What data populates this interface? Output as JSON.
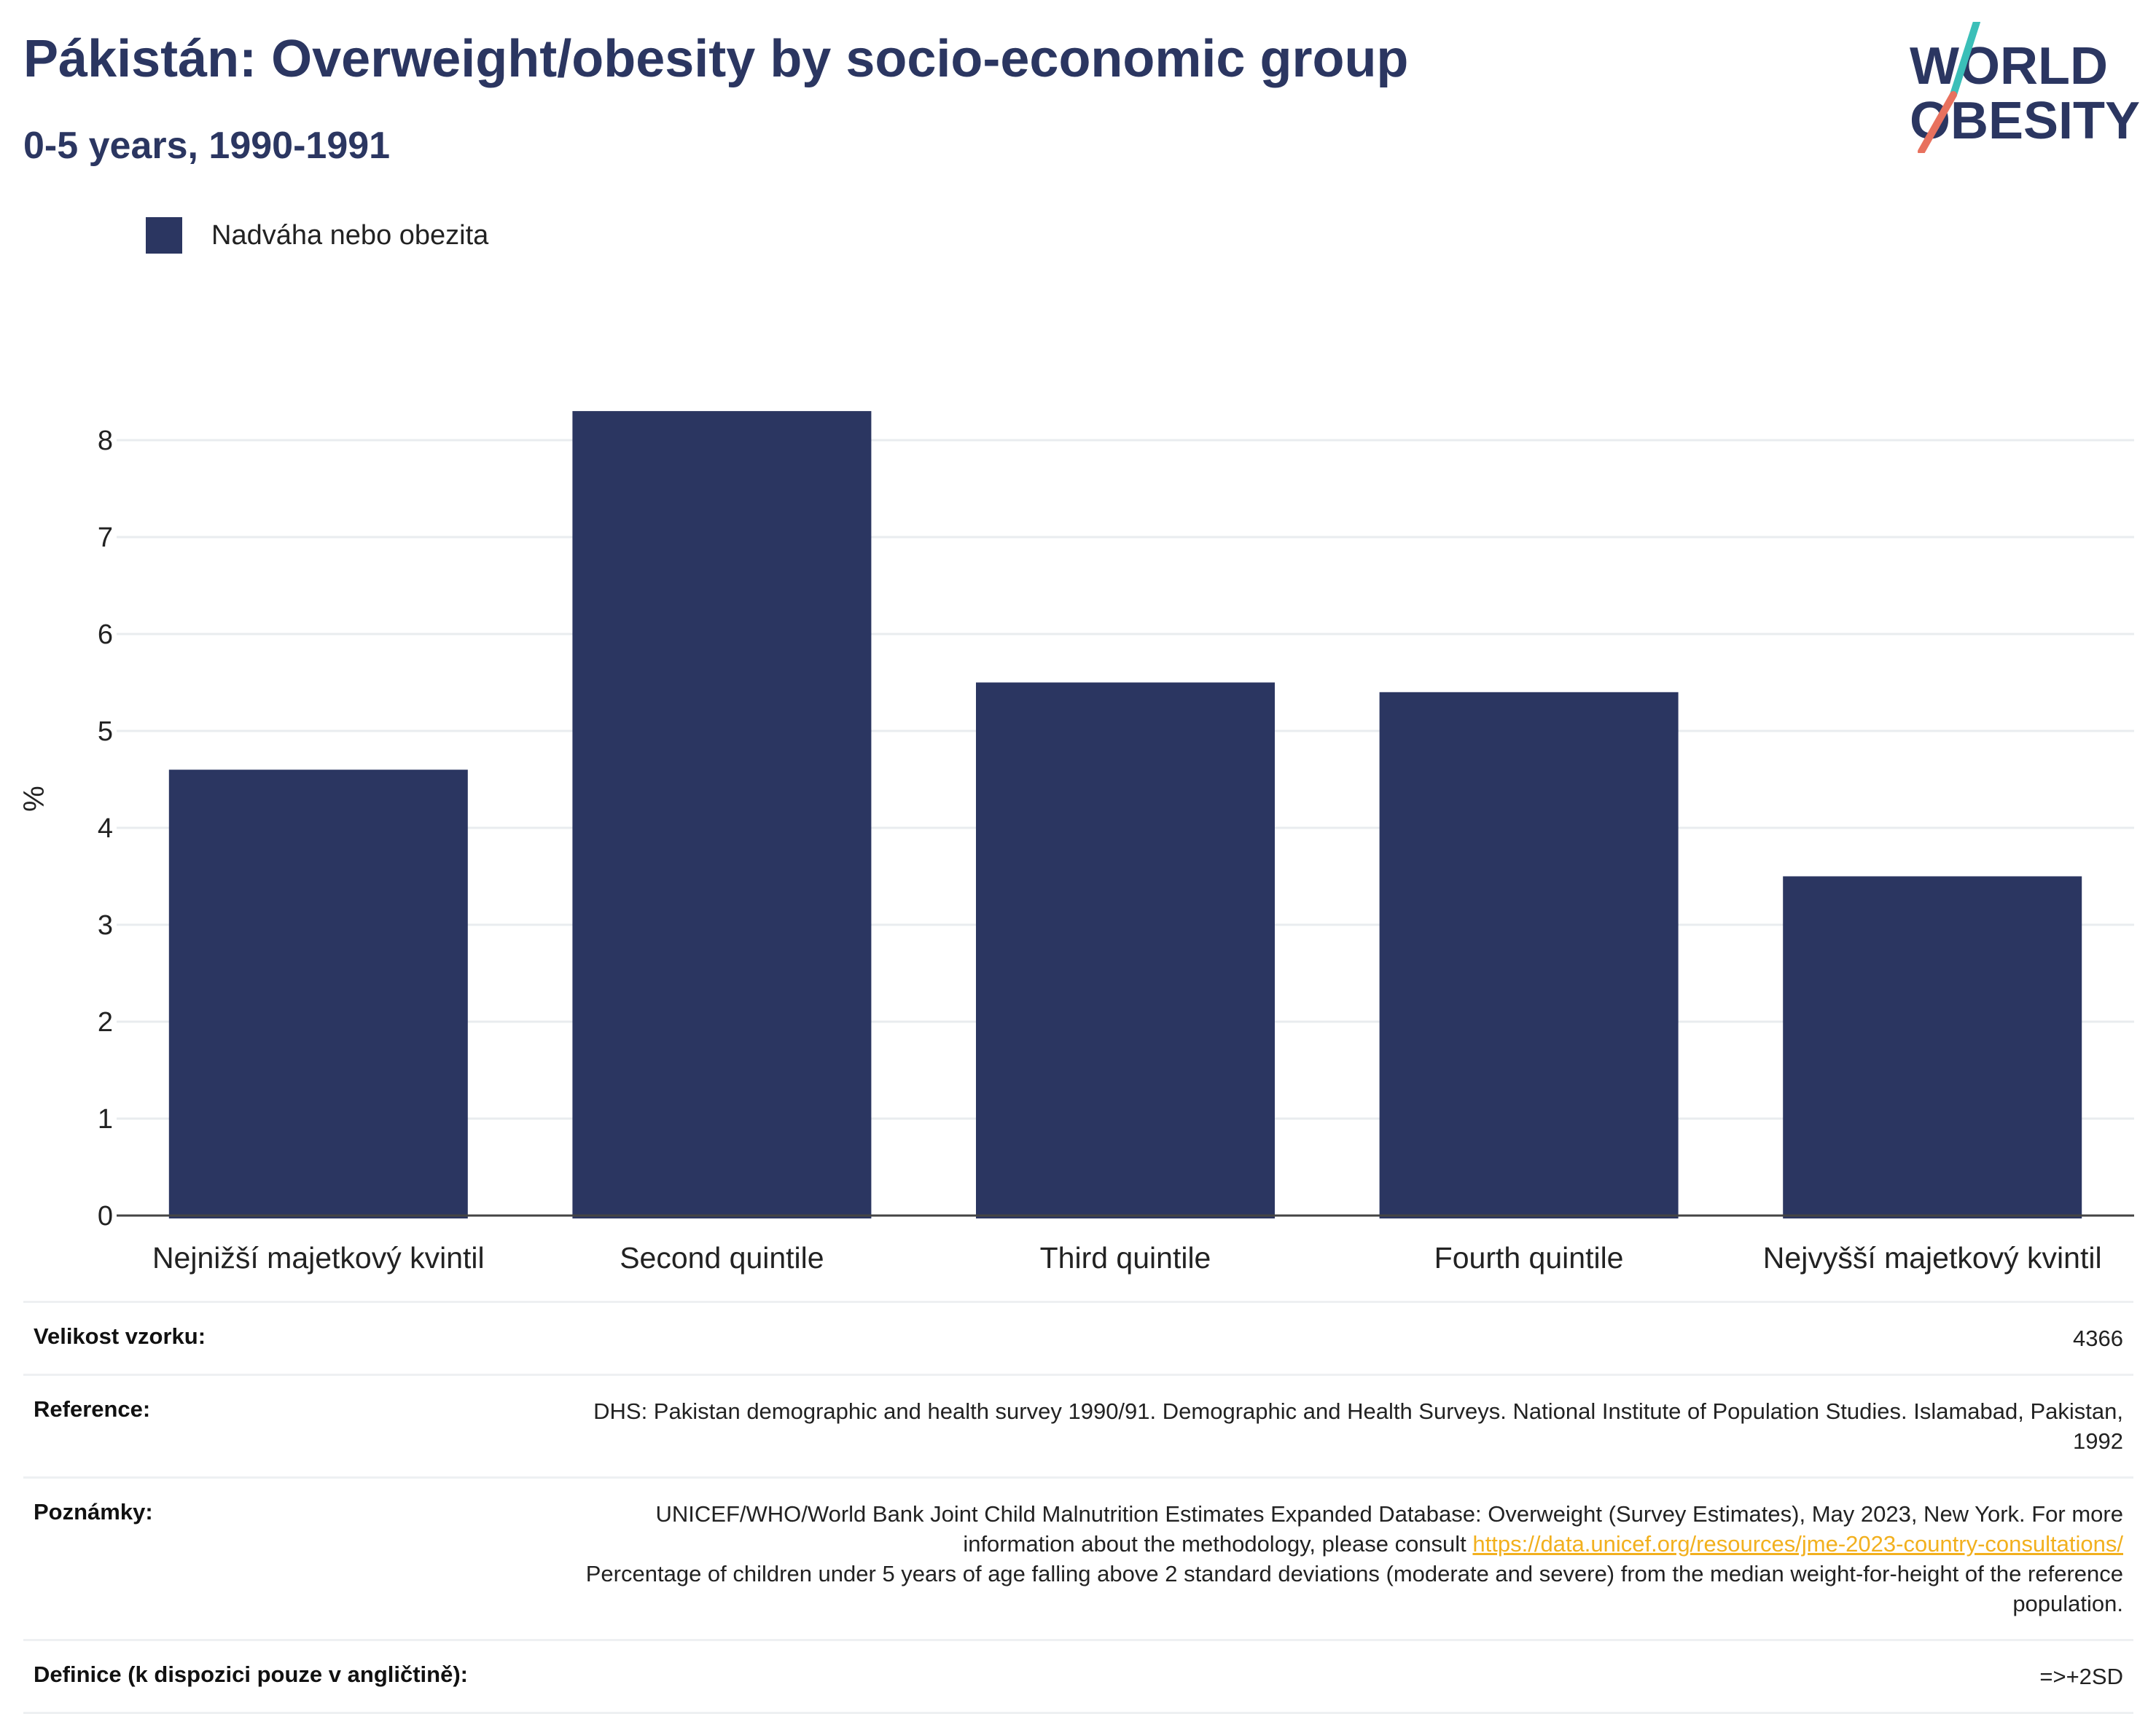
{
  "header": {
    "title": "Pákistán: Overweight/obesity by socio-economic group",
    "subtitle": "0-5 years, 1990-1991"
  },
  "logo": {
    "line1": "WORLD",
    "line2": "OBESITY"
  },
  "colors": {
    "bar": "#2b3661",
    "title": "#2b3661",
    "grid": "#e9ecef",
    "axis": "#444444",
    "link": "#f2b01e",
    "logo_teal": "#3bbfb8",
    "logo_coral": "#e8715e"
  },
  "chart_data": {
    "type": "bar",
    "title": "Pákistán: Overweight/obesity by socio-economic group",
    "subtitle": "0-5 years, 1990-1991",
    "categories": [
      "Nejnižší majetkový kvintil",
      "Second quintile",
      "Third quintile",
      "Fourth quintile",
      "Nejvyšší majetkový kvintil"
    ],
    "series": [
      {
        "name": "Nadváha nebo obezita",
        "values": [
          4.6,
          8.3,
          5.5,
          5.4,
          3.5
        ]
      }
    ],
    "xlabel": "",
    "ylabel": "%",
    "ylim": [
      0,
      8.6
    ],
    "yticks": [
      0,
      1,
      2,
      3,
      4,
      5,
      6,
      7,
      8
    ],
    "grid": true,
    "legend": "top-left"
  },
  "info": {
    "sample_label": "Velikost vzorku:",
    "sample_value": "4366",
    "reference_label": "Reference:",
    "reference_value": "DHS: Pakistan demographic and health survey 1990/91. Demographic and Health Surveys. National Institute of Population Studies. Islamabad, Pakistan, 1992",
    "notes_label": "Poznámky:",
    "notes_text1": "UNICEF/WHO/World Bank Joint Child Malnutrition Estimates Expanded Database: Overweight (Survey Estimates), May 2023, New York. For more information about the methodology, please consult",
    "notes_link": "https://data.unicef.org/resources/jme-2023-country-consultations/",
    "notes_text2": "Percentage of children under 5 years of age falling above 2 standard deviations (moderate and severe) from the median weight-for-height of the reference population.",
    "definition_label": "Definice (k dispozici pouze v angličtině):",
    "definition_value": "=>+2SD"
  }
}
